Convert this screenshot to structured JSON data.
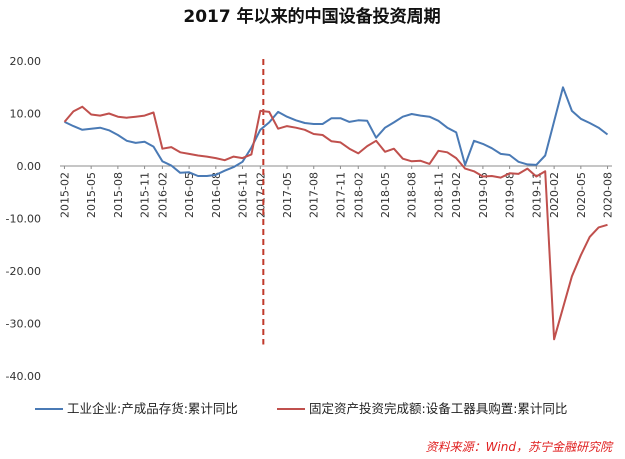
{
  "chart_data": {
    "type": "line",
    "title": "2017 年以来的中国设备投资周期",
    "source": "资料来源：Wind，苏宁金融研究院",
    "xlabel": "",
    "ylabel": "",
    "ylim": [
      -40,
      20
    ],
    "yticks": [
      "20.00",
      "10.00",
      "0.00",
      "-10.00",
      "-20.00",
      "-30.00",
      "-40.00"
    ],
    "ytick_values": [
      20,
      10,
      0,
      -10,
      -20,
      -30,
      -40
    ],
    "grid": false,
    "legend_position": "bottom",
    "x_tick_labels": [
      "2015-02",
      "2015-05",
      "2015-08",
      "2015-11",
      "2016-02",
      "2016-05",
      "2016-08",
      "2016-11",
      "2017-02",
      "2017-05",
      "2017-08",
      "2017-11",
      "2018-02",
      "2018-05",
      "2018-08",
      "2018-11",
      "2019-02",
      "2019-05",
      "2019-08",
      "2019-11",
      "2020-02",
      "2020-05",
      "2020-08"
    ],
    "x_tick_every": 3,
    "x": [
      "2015-02",
      "2015-03",
      "2015-04",
      "2015-05",
      "2015-06",
      "2015-07",
      "2015-08",
      "2015-09",
      "2015-10",
      "2015-11",
      "2015-12",
      "2016-02",
      "2016-03",
      "2016-04",
      "2016-05",
      "2016-06",
      "2016-07",
      "2016-08",
      "2016-09",
      "2016-10",
      "2016-11",
      "2016-12",
      "2017-02",
      "2017-03",
      "2017-04",
      "2017-05",
      "2017-06",
      "2017-07",
      "2017-08",
      "2017-09",
      "2017-10",
      "2017-11",
      "2017-12",
      "2018-02",
      "2018-03",
      "2018-04",
      "2018-05",
      "2018-06",
      "2018-07",
      "2018-08",
      "2018-09",
      "2018-10",
      "2018-11",
      "2018-12",
      "2019-02",
      "2019-03",
      "2019-04",
      "2019-05",
      "2019-06",
      "2019-07",
      "2019-08",
      "2019-09",
      "2019-10",
      "2019-11",
      "2019-12",
      "2020-02",
      "2020-03",
      "2020-04",
      "2020-05",
      "2020-06",
      "2020-07",
      "2020-08"
    ],
    "vline": {
      "x": "2017-02",
      "color": "#c0392b",
      "style": "dashed"
    },
    "series": [
      {
        "name": "工业企业:产成品存货:累计同比",
        "color": "#4a7ab5",
        "values": [
          8.4,
          7.6,
          6.9,
          7.1,
          7.3,
          6.8,
          5.9,
          4.8,
          4.4,
          4.6,
          3.7,
          0.9,
          0.1,
          -1.3,
          -1.2,
          -1.9,
          -1.9,
          -1.7,
          -0.9,
          -0.2,
          0.8,
          3.5,
          6.9,
          8.3,
          10.3,
          9.4,
          8.7,
          8.2,
          8.0,
          8.0,
          9.1,
          9.1,
          8.4,
          8.7,
          8.6,
          5.4,
          7.3,
          8.3,
          9.4,
          9.9,
          9.6,
          9.4,
          8.6,
          7.3,
          6.4,
          0.2,
          4.8,
          4.2,
          3.4,
          2.3,
          2.1,
          0.8,
          0.3,
          0.2,
          2.0,
          8.5,
          15.0,
          10.5,
          9.0,
          8.2,
          7.3,
          6.0
        ]
      },
      {
        "name": "固定资产投资完成额:设备工器具购置:累计同比",
        "color": "#c0504d",
        "values": [
          8.4,
          10.4,
          11.3,
          9.8,
          9.6,
          10.0,
          9.4,
          9.2,
          9.4,
          9.6,
          10.2,
          3.3,
          3.6,
          2.6,
          2.3,
          2.0,
          1.8,
          1.5,
          1.1,
          1.8,
          1.5,
          2.2,
          10.5,
          10.3,
          7.1,
          7.6,
          7.3,
          6.9,
          6.1,
          5.9,
          4.7,
          4.5,
          3.3,
          2.4,
          3.8,
          4.8,
          2.7,
          3.3,
          1.4,
          0.9,
          1.0,
          0.4,
          2.9,
          2.6,
          1.5,
          -0.5,
          -1.0,
          -2.0,
          -1.9,
          -2.2,
          -1.4,
          -1.5,
          -0.5,
          -2.0,
          -1.0,
          -33.0,
          -27.0,
          -21.0,
          -17.0,
          -13.5,
          -11.7,
          -11.2
        ]
      }
    ]
  }
}
